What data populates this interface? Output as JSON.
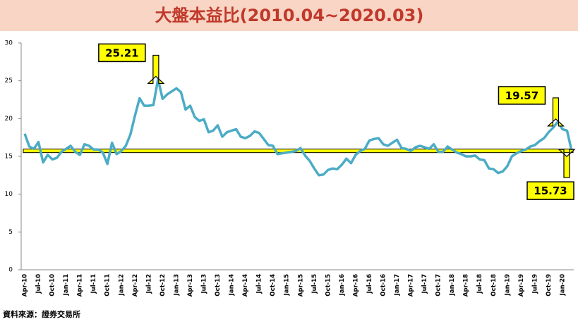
{
  "chart_data": {
    "type": "line",
    "title": "大盤本益比(2010.04~2020.03)",
    "source": "資料來源：證券交易所",
    "categories": [
      "Apr-10",
      null,
      null,
      "Jul-10",
      null,
      null,
      "Oct-10",
      null,
      null,
      "Jan-11",
      null,
      null,
      "Apr-11",
      null,
      null,
      "Jul-11",
      null,
      null,
      "Oct-11",
      null,
      null,
      "Jan-12",
      null,
      null,
      "Apr-12",
      null,
      null,
      "Jul-12",
      null,
      null,
      "Oct-12",
      null,
      null,
      "Jan-13",
      null,
      null,
      "Apr-13",
      null,
      null,
      "Jul-13",
      null,
      null,
      "Oct-13",
      null,
      null,
      "Jan-14",
      null,
      null,
      "Apr-14",
      null,
      null,
      "Jul-14",
      null,
      null,
      "Oct-14",
      null,
      null,
      "Jan-15",
      null,
      null,
      "Apr-15",
      null,
      null,
      "Jul-15",
      null,
      null,
      "Oct-15",
      null,
      null,
      "Jan-16",
      null,
      null,
      "Apr-16",
      null,
      null,
      "Jul-16",
      null,
      null,
      "Oct-16",
      null,
      null,
      "Jan-17",
      null,
      null,
      "Apr-17",
      null,
      null,
      "Jul-17",
      null,
      null,
      "Oct-17",
      null,
      null,
      "Jan-18",
      null,
      null,
      "Apr-18",
      null,
      null,
      "Jul-18",
      null,
      null,
      "Oct-18",
      null,
      null,
      "Jan-19",
      null,
      null,
      "Apr-19",
      null,
      null,
      "Jul-19",
      null,
      null,
      "Oct-19",
      null,
      null,
      "Jan-20",
      null,
      null
    ],
    "values": [
      18.0,
      16.3,
      16.0,
      16.9,
      14.2,
      15.2,
      14.6,
      14.8,
      15.6,
      16.0,
      16.4,
      15.6,
      15.2,
      16.6,
      16.4,
      15.9,
      15.9,
      15.5,
      14.0,
      16.8,
      15.3,
      15.7,
      16.4,
      17.9,
      20.4,
      22.7,
      21.7,
      21.7,
      21.8,
      25.21,
      22.6,
      23.2,
      23.6,
      24.0,
      23.5,
      21.2,
      21.7,
      20.2,
      19.7,
      19.9,
      18.2,
      18.4,
      19.1,
      17.6,
      18.2,
      18.4,
      18.6,
      17.6,
      17.4,
      17.7,
      18.3,
      18.1,
      17.3,
      16.5,
      16.4,
      15.3,
      15.4,
      15.5,
      15.6,
      15.7,
      16.1,
      15.1,
      14.4,
      13.4,
      12.5,
      12.6,
      13.2,
      13.4,
      13.3,
      13.9,
      14.7,
      14.1,
      15.2,
      15.7,
      16.0,
      17.1,
      17.3,
      17.4,
      16.6,
      16.4,
      16.8,
      17.2,
      16.1,
      16.0,
      15.7,
      16.2,
      16.4,
      16.2,
      16.0,
      16.6,
      15.6,
      15.6,
      16.3,
      15.9,
      15.5,
      15.3,
      15.0,
      15.0,
      15.1,
      14.6,
      14.5,
      13.4,
      13.3,
      12.8,
      13.0,
      13.7,
      15.0,
      15.4,
      15.7,
      15.9,
      16.3,
      16.5,
      17.0,
      17.4,
      18.2,
      18.8,
      19.57,
      18.6,
      18.4,
      15.73
    ],
    "value_labels": [
      null,
      null,
      null,
      null,
      null,
      null,
      null,
      null,
      null,
      null,
      null,
      null,
      null,
      null,
      null,
      null,
      null,
      null,
      null,
      null,
      null,
      null,
      null,
      null,
      null,
      null,
      null,
      null,
      null,
      "25.21",
      null,
      null,
      null,
      null,
      null,
      null,
      null,
      null,
      null,
      null,
      null,
      null,
      null,
      null,
      null,
      null,
      null,
      null,
      null,
      null,
      null,
      null,
      null,
      null,
      null,
      null,
      null,
      null,
      null,
      null,
      null,
      null,
      null,
      null,
      null,
      null,
      null,
      null,
      null,
      null,
      null,
      null,
      null,
      null,
      null,
      null,
      null,
      null,
      null,
      null,
      null,
      null,
      null,
      null,
      null,
      null,
      null,
      null,
      null,
      null,
      null,
      null,
      null,
      null,
      null,
      null,
      null,
      null,
      null,
      null,
      null,
      null,
      null,
      null,
      null,
      null,
      null,
      null,
      null,
      null,
      null,
      null,
      null,
      null,
      null,
      null,
      "19.57",
      null,
      null,
      "15.73"
    ],
    "color": "#4bacc6",
    "reference_color": "#ffff00",
    "ylim": [
      0,
      30
    ],
    "yticks": [
      0,
      5,
      10,
      15,
      20,
      25,
      30
    ]
  }
}
